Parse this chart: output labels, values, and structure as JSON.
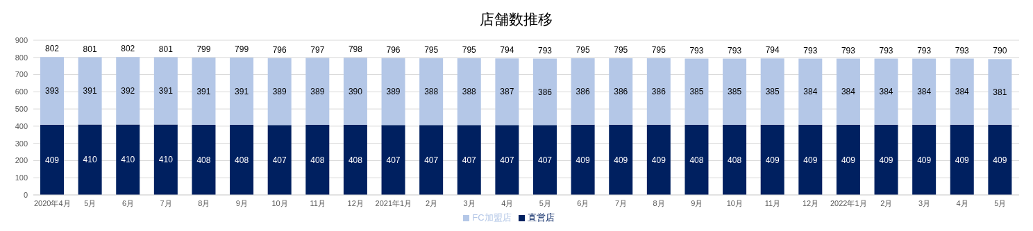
{
  "chart_data": {
    "type": "bar",
    "title": "店舗数推移",
    "stacked": true,
    "categories": [
      "2020年4月",
      "5月",
      "6月",
      "7月",
      "8月",
      "9月",
      "10月",
      "11月",
      "12月",
      "2021年1月",
      "2月",
      "3月",
      "4月",
      "5月",
      "6月",
      "7月",
      "8月",
      "9月",
      "10月",
      "11月",
      "12月",
      "2022年1月",
      "2月",
      "3月",
      "4月",
      "5月"
    ],
    "series": [
      {
        "name": "直営店",
        "color": "#002060",
        "values": [
          409,
          410,
          410,
          410,
          408,
          408,
          407,
          408,
          408,
          407,
          407,
          407,
          407,
          407,
          409,
          409,
          409,
          408,
          408,
          409,
          409,
          409,
          409,
          409,
          409,
          409
        ]
      },
      {
        "name": "FC加盟店",
        "color": "#b4c7e7",
        "values": [
          393,
          391,
          392,
          391,
          391,
          391,
          389,
          389,
          390,
          389,
          388,
          388,
          387,
          386,
          386,
          386,
          386,
          385,
          385,
          385,
          384,
          384,
          384,
          384,
          384,
          381
        ]
      }
    ],
    "totals": [
      "802",
      "801",
      "802",
      "801",
      "799",
      "799",
      "796",
      "797",
      "798",
      "796",
      "795",
      "795",
      "794",
      "793",
      "795",
      "795",
      "795",
      "793",
      "793",
      "794",
      "793",
      "793",
      "793",
      "793",
      "793",
      "790"
    ],
    "data_labels": true,
    "ylim": [
      0,
      900
    ],
    "yticks": [
      0,
      100,
      200,
      300,
      400,
      500,
      600,
      700,
      800,
      900
    ],
    "grid": "y",
    "legend": "bottom"
  }
}
